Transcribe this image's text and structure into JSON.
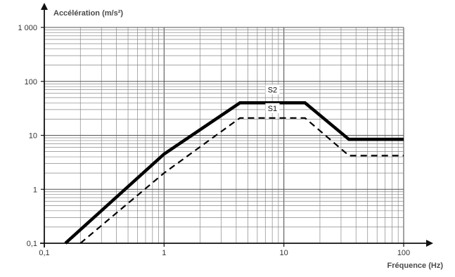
{
  "chart_data": {
    "type": "line",
    "xscale": "log",
    "yscale": "log",
    "xlim": [
      0.1,
      100
    ],
    "ylim": [
      0.1,
      1000
    ],
    "xlabel": "Fréquence (Hz)",
    "ylabel": "Accélération (m/s²)",
    "grid": true,
    "x_ticks": [
      {
        "value": 0.1,
        "label": "0,1"
      },
      {
        "value": 1,
        "label": "1"
      },
      {
        "value": 10,
        "label": "10"
      },
      {
        "value": 100,
        "label": "100"
      }
    ],
    "y_ticks": [
      {
        "value": 0.1,
        "label": "0,1"
      },
      {
        "value": 1,
        "label": "1"
      },
      {
        "value": 10,
        "label": "10"
      },
      {
        "value": 100,
        "label": "100"
      },
      {
        "value": 1000,
        "label": "1 000"
      }
    ],
    "series": [
      {
        "name": "S2",
        "style": "solid",
        "color": "#000000",
        "x": [
          0.15,
          1,
          4.3,
          15,
          35,
          100
        ],
        "y": [
          0.1,
          4.5,
          40,
          40,
          8.4,
          8.4
        ]
      },
      {
        "name": "S1",
        "style": "dashed",
        "color": "#000000",
        "x": [
          0.2,
          1,
          4.3,
          15,
          35,
          100
        ],
        "y": [
          0.1,
          2,
          21,
          21,
          4.2,
          4.2
        ]
      }
    ]
  }
}
